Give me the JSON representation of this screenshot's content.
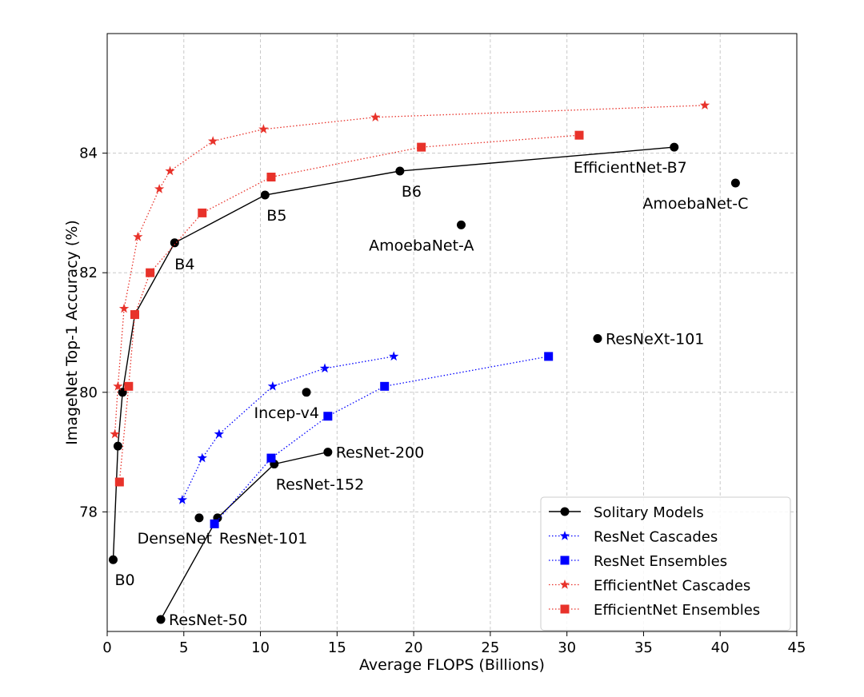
{
  "chart_data": {
    "type": "line",
    "title": "",
    "xlabel": "Average FLOPS (Billions)",
    "ylabel": "ImageNet Top-1 Accuracy (%)",
    "xlim": [
      0,
      45
    ],
    "ylim": [
      76,
      86
    ],
    "xticks": [
      0,
      5,
      10,
      15,
      20,
      25,
      30,
      35,
      40,
      45
    ],
    "yticks": [
      78,
      80,
      82,
      84
    ],
    "grid": true,
    "legend_position": "lower-right",
    "series": [
      {
        "name": "Solitary Models",
        "color": "#000000",
        "marker": "circle",
        "line_style": "solid",
        "groups": [
          [
            [
              0.39,
              77.2
            ],
            [
              0.7,
              79.1
            ],
            [
              1.0,
              80.0
            ],
            [
              1.8,
              81.3
            ],
            [
              4.4,
              82.5
            ],
            [
              10.3,
              83.3
            ],
            [
              19.1,
              83.7
            ],
            [
              37.0,
              84.1
            ]
          ],
          [
            [
              3.5,
              76.2
            ],
            [
              7.2,
              77.9
            ],
            [
              10.9,
              78.8
            ],
            [
              14.4,
              79.0
            ]
          ]
        ],
        "points": [
          [
            6.0,
            77.9
          ],
          [
            13.0,
            80.0
          ],
          [
            23.1,
            82.8
          ],
          [
            32.0,
            80.9
          ],
          [
            41.0,
            83.5
          ]
        ]
      },
      {
        "name": "ResNet Cascades",
        "color": "#0000ff",
        "marker": "star",
        "line_style": "dotted",
        "x": [
          4.9,
          6.2,
          7.3,
          10.8,
          14.2,
          18.7
        ],
        "y": [
          78.2,
          78.9,
          79.3,
          80.1,
          80.4,
          80.6
        ]
      },
      {
        "name": "ResNet Ensembles",
        "color": "#0000ff",
        "marker": "square",
        "line_style": "dotted",
        "x": [
          7.0,
          10.7,
          14.4,
          18.1,
          28.8
        ],
        "y": [
          77.8,
          78.9,
          79.6,
          80.1,
          80.6
        ]
      },
      {
        "name": "EfficientNet Cascades",
        "color": "#e8322a",
        "marker": "star",
        "line_style": "dotted",
        "x": [
          0.5,
          0.7,
          1.1,
          2.0,
          3.4,
          4.1,
          6.9,
          10.2,
          17.5,
          39.0
        ],
        "y": [
          79.3,
          80.1,
          81.4,
          82.6,
          83.4,
          83.7,
          84.2,
          84.4,
          84.6,
          84.8
        ]
      },
      {
        "name": "EfficientNet Ensembles",
        "color": "#e8322a",
        "marker": "square",
        "line_style": "dotted",
        "x": [
          0.8,
          1.4,
          1.8,
          2.8,
          6.2,
          10.7,
          20.5,
          30.8
        ],
        "y": [
          78.5,
          80.1,
          81.3,
          82.0,
          83.0,
          83.6,
          84.1,
          84.3
        ]
      }
    ],
    "annotations": [
      {
        "text": "B0",
        "x": 0.39,
        "y": 77.2,
        "anchor": "below"
      },
      {
        "text": "B4",
        "x": 4.4,
        "y": 82.5,
        "anchor": "below-right"
      },
      {
        "text": "B5",
        "x": 10.3,
        "y": 83.3,
        "anchor": "below"
      },
      {
        "text": "B6",
        "x": 19.1,
        "y": 83.7,
        "anchor": "below"
      },
      {
        "text": "EfficientNet-B7",
        "x": 37.0,
        "y": 84.1,
        "anchor": "below-left"
      },
      {
        "text": "AmoebaNet-C",
        "x": 41.0,
        "y": 83.5,
        "anchor": "below-left"
      },
      {
        "text": "AmoebaNet-A",
        "x": 23.1,
        "y": 82.8,
        "anchor": "below-left"
      },
      {
        "text": "ResNeXt-101",
        "x": 32.0,
        "y": 80.9,
        "anchor": "right"
      },
      {
        "text": "Incep-v4",
        "x": 13.0,
        "y": 80.0,
        "anchor": "below-left"
      },
      {
        "text": "ResNet-200",
        "x": 14.4,
        "y": 79.0,
        "anchor": "right"
      },
      {
        "text": "ResNet-152",
        "x": 10.9,
        "y": 78.8,
        "anchor": "below"
      },
      {
        "text": "DenseNet",
        "x": 6.0,
        "y": 77.9,
        "anchor": "below-left"
      },
      {
        "text": "ResNet-101",
        "x": 7.2,
        "y": 77.9,
        "anchor": "below"
      },
      {
        "text": "ResNet-50",
        "x": 3.5,
        "y": 76.2,
        "anchor": "right"
      }
    ]
  }
}
